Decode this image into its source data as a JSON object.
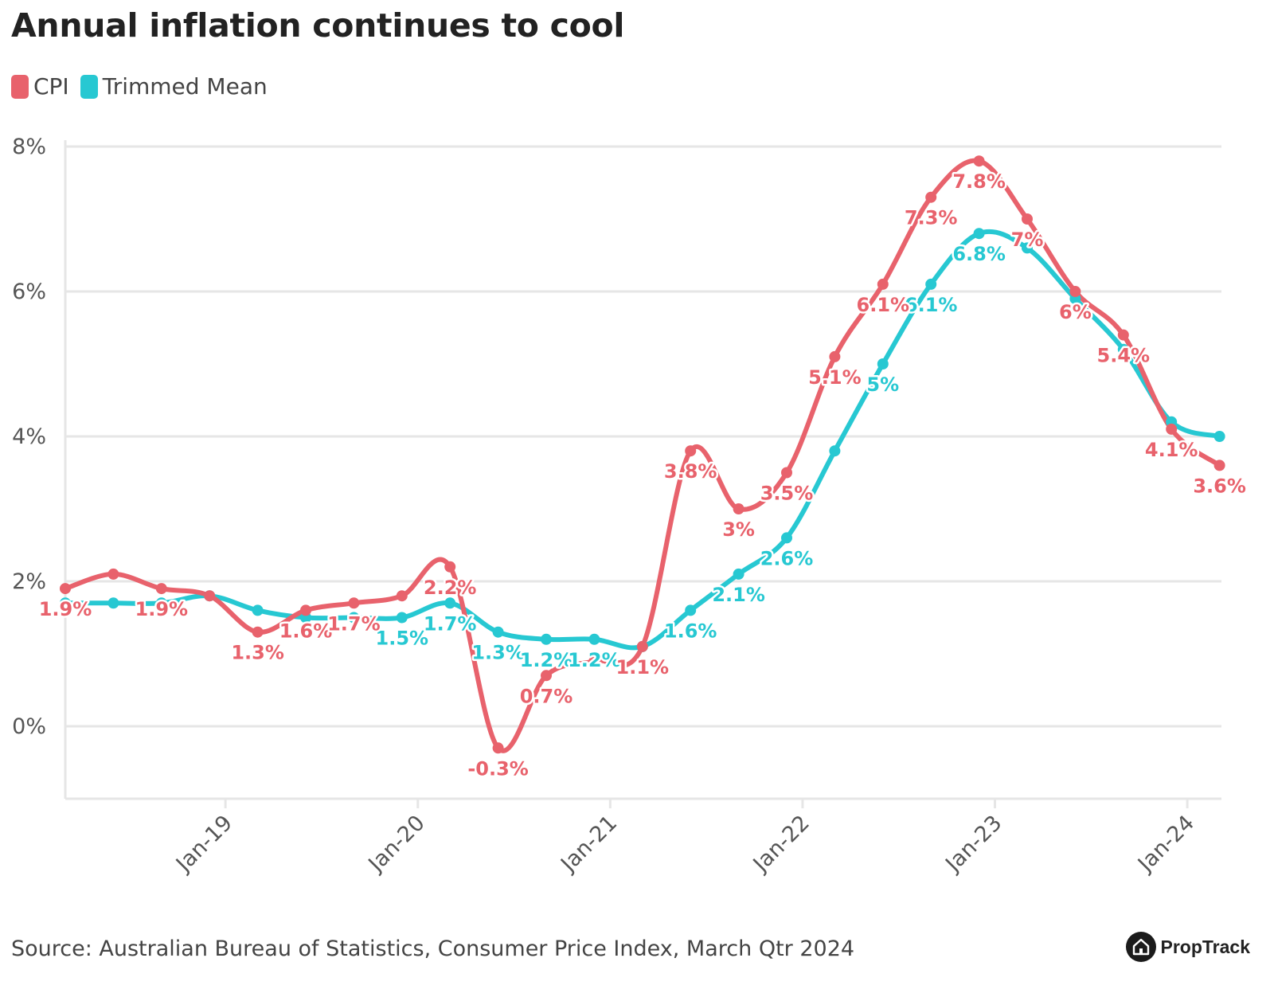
{
  "title": "Annual inflation continues to cool",
  "source": "Source: Australian Bureau of Statistics, Consumer Price Index, March Qtr 2024",
  "brand": "PropTrack",
  "colors": {
    "cpi": "#e8626c",
    "trimmed_mean": "#27c8d2",
    "grid": "#e6e6e6"
  },
  "chart_data": {
    "type": "line",
    "title": "Annual inflation continues to cool",
    "x": [
      "Mar-18",
      "Jun-18",
      "Sep-18",
      "Dec-18",
      "Mar-19",
      "Jun-19",
      "Sep-19",
      "Dec-19",
      "Mar-20",
      "Jun-20",
      "Sep-20",
      "Dec-20",
      "Mar-21",
      "Jun-21",
      "Sep-21",
      "Dec-21",
      "Mar-22",
      "Jun-22",
      "Sep-22",
      "Dec-22",
      "Mar-23",
      "Jun-23",
      "Sep-23",
      "Dec-23",
      "Mar-24"
    ],
    "x_ticks": [
      "Jan-19",
      "Jan-20",
      "Jan-21",
      "Jan-22",
      "Jan-23",
      "Jan-24"
    ],
    "y_ticks": [
      "0%",
      "2%",
      "4%",
      "6%",
      "8%"
    ],
    "ylim": [
      -1,
      8
    ],
    "grid": true,
    "legend": "top-left",
    "series": [
      {
        "name": "CPI",
        "values": [
          1.9,
          2.1,
          1.9,
          1.8,
          1.3,
          1.6,
          1.7,
          1.8,
          2.2,
          -0.3,
          0.7,
          0.9,
          1.1,
          3.8,
          3.0,
          3.5,
          5.1,
          6.1,
          7.3,
          7.8,
          7.0,
          6.0,
          5.4,
          4.1,
          3.6
        ],
        "labels": [
          "1.9%",
          "",
          "1.9%",
          "",
          "1.3%",
          "1.6%",
          "1.7%",
          "",
          "2.2%",
          "-0.3%",
          "0.7%",
          "",
          "1.1%",
          "3.8%",
          "3%",
          "3.5%",
          "5.1%",
          "6.1%",
          "7.3%",
          "7.8%",
          "7%",
          "6%",
          "5.4%",
          "4.1%",
          "3.6%"
        ]
      },
      {
        "name": "Trimmed Mean",
        "values": [
          1.7,
          1.7,
          1.7,
          1.8,
          1.6,
          1.5,
          1.5,
          1.5,
          1.7,
          1.3,
          1.2,
          1.2,
          1.1,
          1.6,
          2.1,
          2.6,
          3.8,
          5.0,
          6.1,
          6.8,
          6.6,
          5.9,
          5.2,
          4.2,
          4.0
        ],
        "labels": [
          "",
          "",
          "",
          "",
          "",
          "",
          "",
          "1.5%",
          "1.7%",
          "1.3%",
          "1.2%",
          "1.2%",
          "",
          "1.6%",
          "2.1%",
          "2.6%",
          "",
          "5%",
          "6.1%",
          "6.8%",
          "",
          "",
          "",
          "",
          ""
        ]
      }
    ]
  }
}
